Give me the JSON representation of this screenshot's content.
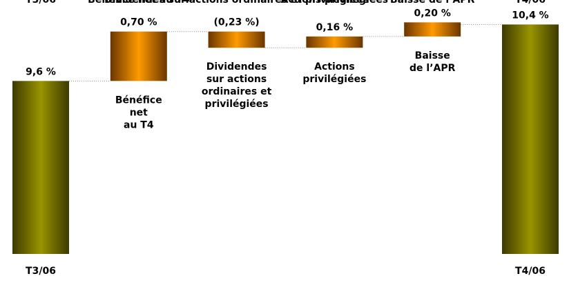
{
  "chart_data": {
    "type": "waterfall",
    "categories": [
      "T3/06",
      "Bénéfice\nnet\nau T4",
      "Dividendes\nsur actions\nordinaires et\nprivilégiées",
      "Actions\nprivilégiées",
      "Baisse\nde l’APR",
      "T4/06"
    ],
    "measure": [
      "absolute",
      "relative",
      "relative",
      "relative",
      "relative",
      "total"
    ],
    "values": [
      9.6,
      0.7,
      -0.23,
      0.16,
      0.2,
      10.4
    ],
    "value_labels": [
      "9,6 %",
      "0,70 %",
      "(0,23 %)",
      "0,16 %",
      "0,20 %",
      "10,4 %"
    ],
    "colors": [
      "#9a9400",
      "#ff9a00",
      "#ff9a00",
      "#ff9a00",
      "#ff9a00",
      "#9a9400"
    ],
    "ylim": [
      7.15,
      10.6
    ]
  }
}
